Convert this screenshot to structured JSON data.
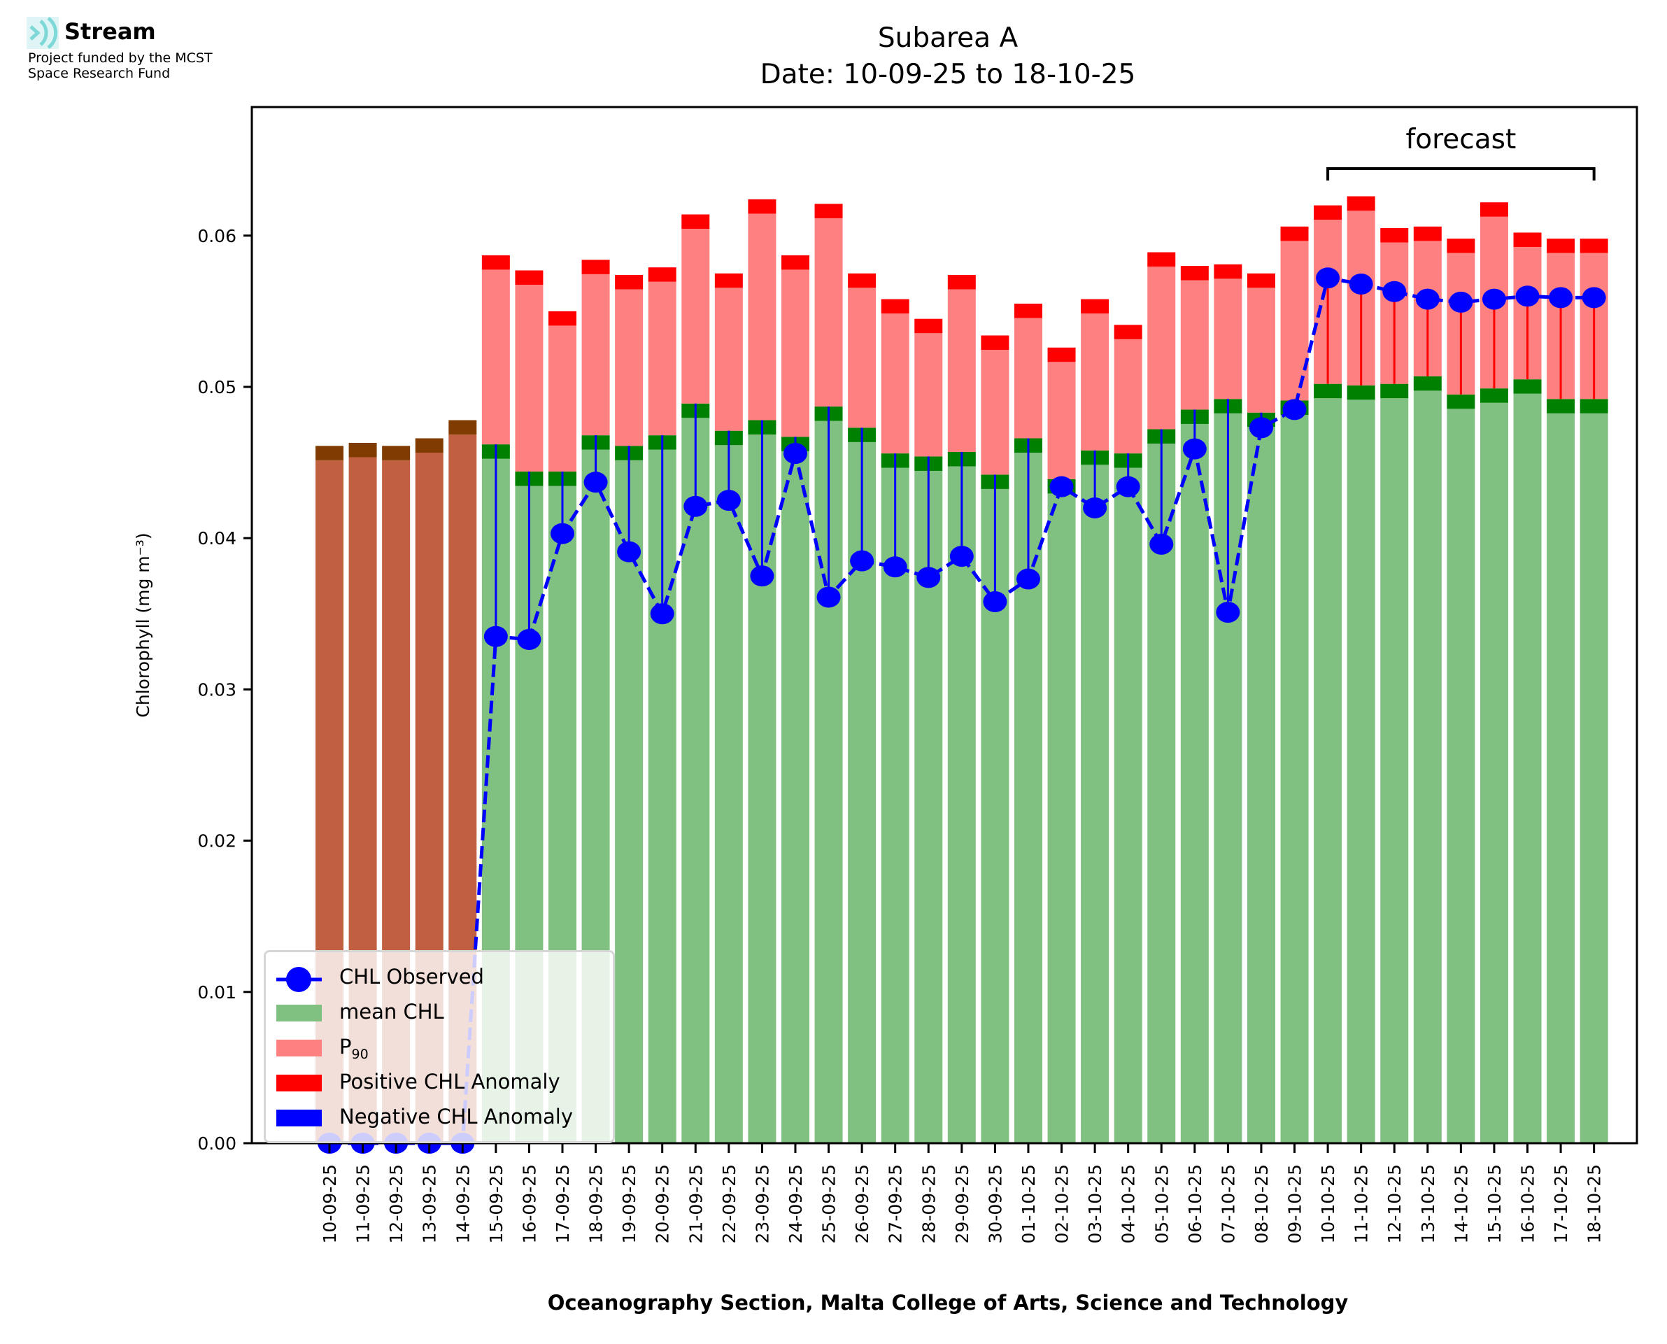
{
  "logo": {
    "title": "Stream",
    "subtitle_line1": "Project funded by the MCST",
    "subtitle_line2": "Space Research Fund",
    "accent": "#7fd8d8"
  },
  "chart_data": {
    "type": "bar",
    "title": "Subarea A",
    "subtitle": "Date: 10-09-25 to 18-10-25",
    "xlabel": "Oceanography Section, Malta College of Arts, Science and Technology",
    "ylabel": "Chlorophyll (mg m⁻³)",
    "ylim": [
      0,
      0.0685
    ],
    "yticks": [
      "0.00",
      "0.01",
      "0.02",
      "0.03",
      "0.04",
      "0.05",
      "0.06"
    ],
    "ytick_values": [
      0,
      0.01,
      0.02,
      0.03,
      0.04,
      0.05,
      0.06
    ],
    "annotation": "forecast",
    "forecast_range": [
      "10-10-25",
      "18-10-25"
    ],
    "legend_position": "lower-left",
    "legend": [
      {
        "label": "CHL Observed",
        "color": "#0000ff",
        "kind": "line-marker"
      },
      {
        "label": "mean CHL",
        "color": "#80c080",
        "kind": "patch"
      },
      {
        "label": "P",
        "sub": "90",
        "color": "#ff8080",
        "kind": "patch"
      },
      {
        "label": "Positive CHL Anomaly",
        "color": "#ff0000",
        "kind": "patch"
      },
      {
        "label": "Negative CHL Anomaly",
        "color": "#0000ff",
        "kind": "patch"
      }
    ],
    "colors": {
      "mean": "#80c080",
      "mean_band": "#008000",
      "p90": "#ff8080",
      "p90_band": "#ff0000",
      "no_obs": "#c06040",
      "no_obs_band": "#803c00",
      "observed": "#0000ff",
      "positive": "#ff0000",
      "negative": "#0000ff"
    },
    "categories": [
      "10-09-25",
      "11-09-25",
      "12-09-25",
      "13-09-25",
      "14-09-25",
      "15-09-25",
      "16-09-25",
      "17-09-25",
      "18-09-25",
      "19-09-25",
      "20-09-25",
      "21-09-25",
      "22-09-25",
      "23-09-25",
      "24-09-25",
      "25-09-25",
      "26-09-25",
      "27-09-25",
      "28-09-25",
      "29-09-25",
      "30-09-25",
      "01-10-25",
      "02-10-25",
      "03-10-25",
      "04-10-25",
      "05-10-25",
      "06-10-25",
      "07-10-25",
      "08-10-25",
      "09-10-25",
      "10-10-25",
      "11-10-25",
      "12-10-25",
      "13-10-25",
      "14-10-25",
      "15-10-25",
      "16-10-25",
      "17-10-25",
      "18-10-25"
    ],
    "series": [
      {
        "name": "mean CHL",
        "values": [
          0.0461,
          0.0463,
          0.0461,
          0.0466,
          0.0478,
          0.0462,
          0.0444,
          0.0444,
          0.0468,
          0.0461,
          0.0468,
          0.0489,
          0.0471,
          0.0478,
          0.0467,
          0.0487,
          0.0473,
          0.0456,
          0.0454,
          0.0457,
          0.0442,
          0.0466,
          0.0439,
          0.0458,
          0.0456,
          0.0472,
          0.0485,
          0.0492,
          0.0483,
          0.0491,
          0.0502,
          0.0501,
          0.0502,
          0.0507,
          0.0495,
          0.0499,
          0.0505,
          0.0492,
          0.0492
        ]
      },
      {
        "name": "P90",
        "values": [
          null,
          null,
          null,
          null,
          null,
          0.0587,
          0.0577,
          0.055,
          0.0584,
          0.0574,
          0.0579,
          0.0614,
          0.0575,
          0.0624,
          0.0587,
          0.0621,
          0.0575,
          0.0558,
          0.0545,
          0.0574,
          0.0534,
          0.0555,
          0.0526,
          0.0558,
          0.0541,
          0.0589,
          0.058,
          0.0581,
          0.0575,
          0.0606,
          0.062,
          0.0626,
          0.0605,
          0.0606,
          0.0598,
          0.0622,
          0.0602,
          0.0598,
          0.0598
        ]
      },
      {
        "name": "CHL Observed",
        "values": [
          0,
          0,
          0,
          0,
          0,
          0.0335,
          0.0333,
          0.0403,
          0.0437,
          0.0391,
          0.035,
          0.0421,
          0.0425,
          0.0375,
          0.0456,
          0.0361,
          0.0385,
          0.0381,
          0.0374,
          0.0388,
          0.0358,
          0.0373,
          0.0434,
          0.042,
          0.0434,
          0.0396,
          0.0459,
          0.0351,
          0.0473,
          0.0485,
          0.0572,
          0.0568,
          0.0563,
          0.0558,
          0.0556,
          0.0558,
          0.056,
          0.0559,
          0.0559
        ]
      }
    ]
  }
}
